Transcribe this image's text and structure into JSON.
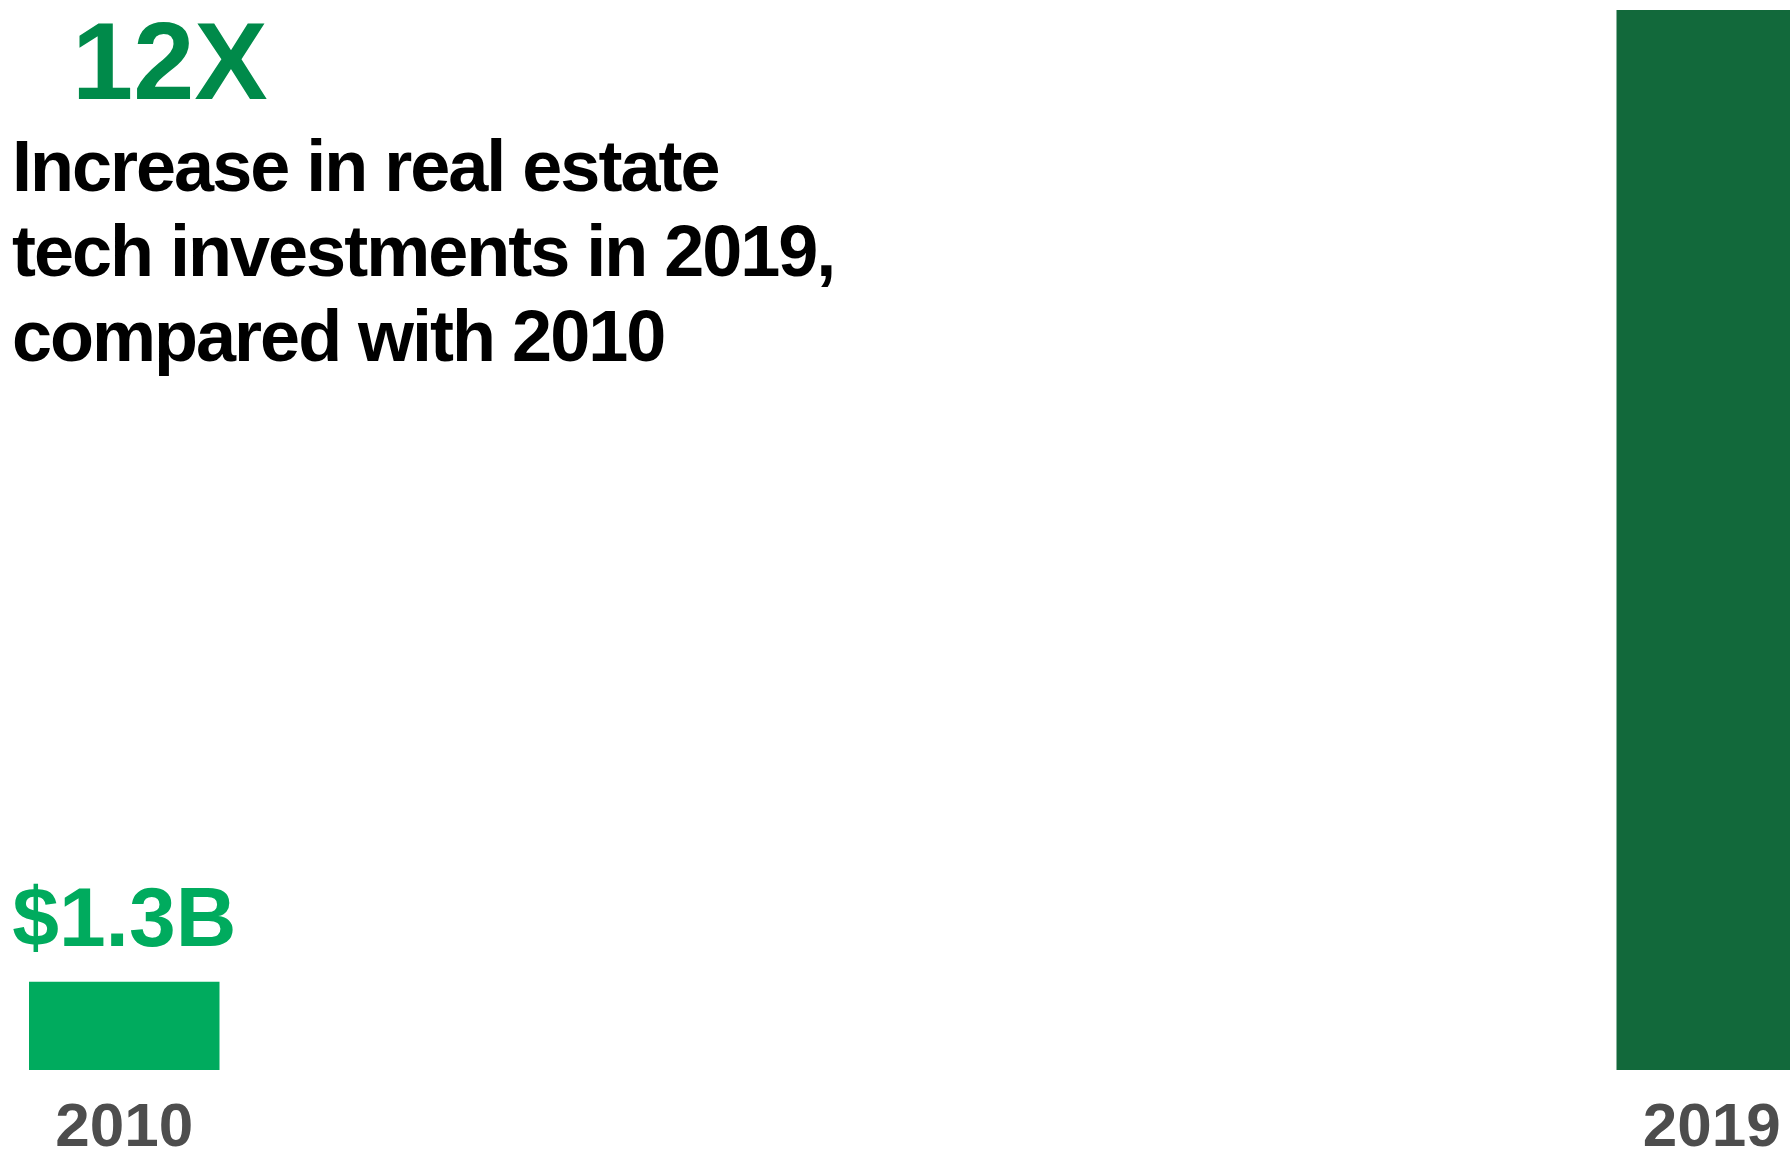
{
  "chart_data": {
    "type": "bar",
    "title": "Increase in real estate tech investments in 2019, compared with 2010",
    "annotations": [
      "12X"
    ],
    "categories": [
      "2010",
      "2019"
    ],
    "values": [
      1.3,
      15.6
    ],
    "colors": [
      "#00ab5e",
      "#12693b"
    ],
    "value_labels": [
      "$1.3B",
      null
    ]
  }
}
